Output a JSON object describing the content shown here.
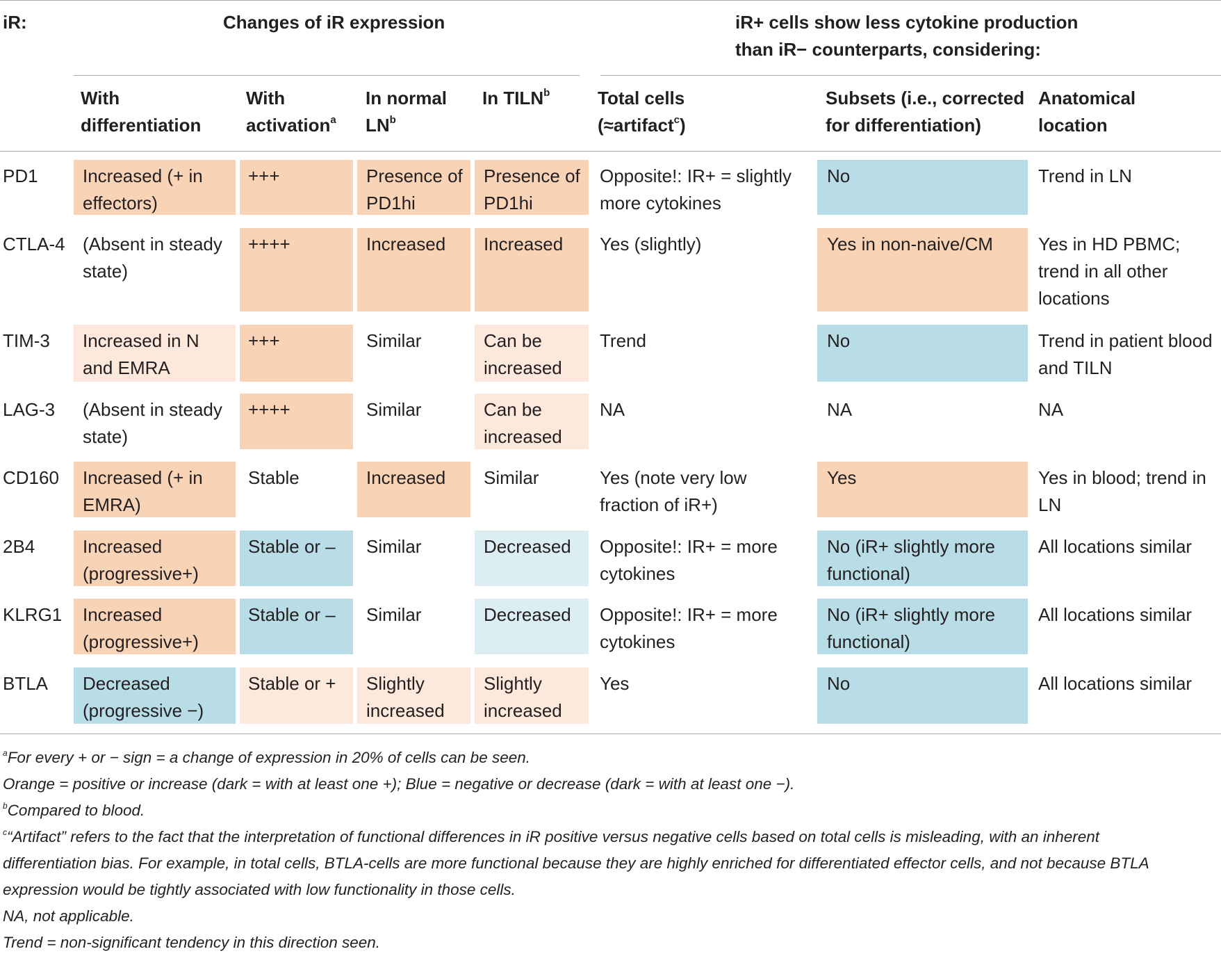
{
  "colors": {
    "orange_dark": "#f9d3b6",
    "orange_light": "#fde8dc",
    "blue_dark": "#b8dde6",
    "blue_light": "#dbeef3",
    "rule": "#a7a9ac",
    "text": "#231f20"
  },
  "header": {
    "ir_label": "iR:",
    "group1": "Changes of iR expression",
    "group2_line1": "iR+ cells show less cytokine production",
    "group2_line2": "than iR− counterparts, considering:",
    "col_diff_1": "With",
    "col_diff_2": "differentiation",
    "col_act_1": "With",
    "col_act_2": "activation",
    "col_act_sup": "a",
    "col_ln_1": "In normal",
    "col_ln_2": "LN",
    "col_ln_sup": "b",
    "col_tiln": "In TILN",
    "col_tiln_sup": "b",
    "col_total_1": "Total cells",
    "col_total_2a": "(≈artifact",
    "col_total_sup": "c",
    "col_total_2b": ")",
    "col_sub_1": "Subsets (i.e., corrected",
    "col_sub_2": "for differentiation)",
    "col_anat_1": "Anatomical",
    "col_anat_2": "location"
  },
  "rows": [
    {
      "ir": "PD1",
      "diff": [
        "Increased (+ in",
        "effectors)"
      ],
      "act": [
        "+++"
      ],
      "ln": [
        "Presence of",
        "PD1hi"
      ],
      "tiln": [
        "Presence of",
        "PD1hi"
      ],
      "total": [
        "Opposite!: IR+ = slightly",
        "more cytokines"
      ],
      "sub": [
        "No"
      ],
      "anat": [
        "Trend in LN"
      ]
    },
    {
      "ir": "CTLA-4",
      "diff": [
        "(Absent in steady",
        "state)"
      ],
      "act": [
        "++++"
      ],
      "ln": [
        "Increased"
      ],
      "tiln": [
        "Increased"
      ],
      "total": [
        "Yes (slightly)"
      ],
      "sub": [
        "Yes in non-naive/CM"
      ],
      "anat": [
        "Yes in HD PBMC;",
        "trend in all other",
        "locations"
      ]
    },
    {
      "ir": "TIM-3",
      "diff": [
        "Increased in N",
        "and EMRA"
      ],
      "act": [
        "+++"
      ],
      "ln": [
        "Similar"
      ],
      "tiln": [
        "Can be",
        "increased"
      ],
      "total": [
        "Trend"
      ],
      "sub": [
        "No"
      ],
      "anat": [
        "Trend in patient blood",
        "and TILN"
      ]
    },
    {
      "ir": "LAG-3",
      "diff": [
        "(Absent in steady",
        "state)"
      ],
      "act": [
        "++++"
      ],
      "ln": [
        "Similar"
      ],
      "tiln": [
        "Can be",
        "increased"
      ],
      "total": [
        "NA"
      ],
      "sub": [
        "NA"
      ],
      "anat": [
        "NA"
      ]
    },
    {
      "ir": "CD160",
      "diff": [
        "Increased (+ in",
        "EMRA)"
      ],
      "act": [
        "Stable"
      ],
      "ln": [
        "Increased"
      ],
      "tiln": [
        "Similar"
      ],
      "total": [
        "Yes (note very low",
        "fraction of iR+)"
      ],
      "sub": [
        "Yes"
      ],
      "anat": [
        "Yes in blood; trend in",
        "LN"
      ]
    },
    {
      "ir": "2B4",
      "diff": [
        "Increased",
        "(progressive+)"
      ],
      "act": [
        "Stable or –"
      ],
      "ln": [
        "Similar"
      ],
      "tiln": [
        "Decreased"
      ],
      "total": [
        "Opposite!: IR+ = more",
        "cytokines"
      ],
      "sub": [
        "No (iR+ slightly more",
        "functional)"
      ],
      "anat": [
        "All locations similar"
      ]
    },
    {
      "ir": "KLRG1",
      "diff": [
        "Increased",
        "(progressive+)"
      ],
      "act": [
        "Stable or –"
      ],
      "ln": [
        "Similar"
      ],
      "tiln": [
        "Decreased"
      ],
      "total": [
        "Opposite!: IR+ = more",
        "cytokines"
      ],
      "sub": [
        "No (iR+ slightly more",
        "functional)"
      ],
      "anat": [
        "All locations similar"
      ]
    },
    {
      "ir": "BTLA",
      "diff": [
        "Decreased",
        "(progressive −)"
      ],
      "act": [
        "Stable or +"
      ],
      "ln": [
        "Slightly",
        "increased"
      ],
      "tiln": [
        "Slightly",
        "increased"
      ],
      "total": [
        "Yes"
      ],
      "sub": [
        "No"
      ],
      "anat": [
        "All locations similar"
      ]
    }
  ],
  "footnotes": {
    "a_sup": "a",
    "a_text": "For every + or − sign = a change of expression in 20% of cells can be seen.",
    "colors_text": "Orange = positive or increase (dark = with at least one +); Blue = negative or decrease (dark = with at least one −).",
    "b_sup": "b",
    "b_text": "Compared to blood.",
    "c_sup": "c",
    "c_line1": "“Artifact” refers to the fact that the interpretation of functional differences in iR positive versus negative cells based on total cells is misleading, with an inherent",
    "c_line2": "differentiation bias. For example, in total cells, BTLA-cells are more functional because they are highly enriched for differentiated effector cells, and not because BTLA",
    "c_line3": "expression would be tightly associated with low functionality in those cells.",
    "na_text": "NA, not applicable.",
    "trend_text": "Trend = non-significant tendency in this direction seen."
  }
}
